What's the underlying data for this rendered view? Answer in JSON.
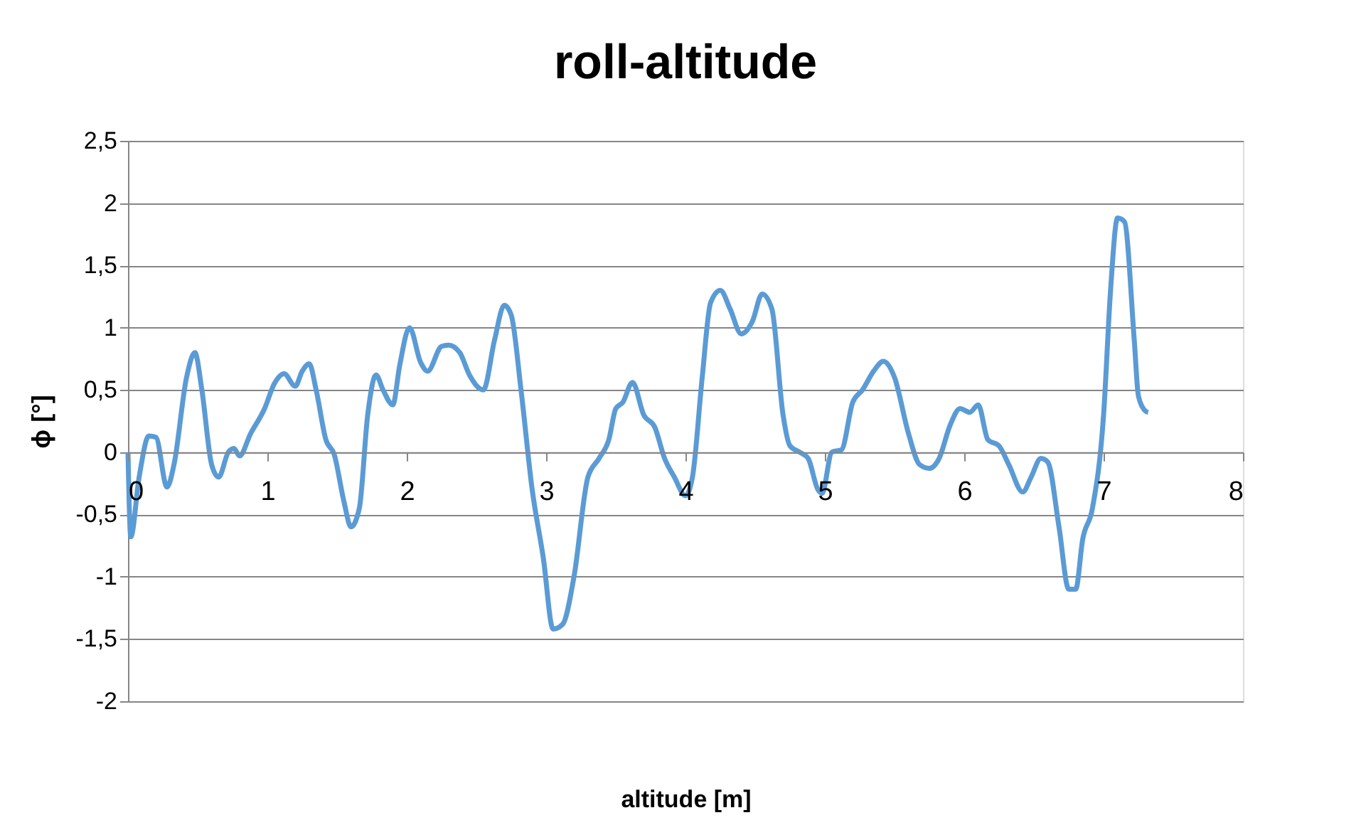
{
  "chart_data": {
    "type": "line",
    "title": "roll-altitude",
    "xlabel": "altitude [m]",
    "ylabel": "ϕ [°]",
    "xlim": [
      0,
      8
    ],
    "xticks": [
      0,
      1,
      2,
      3,
      4,
      5,
      6,
      7,
      8
    ],
    "ylim": [
      -2,
      2.5
    ],
    "yticks": [
      -2,
      {
        "value": -1.5,
        "label": "-1,5"
      },
      -1,
      {
        "value": -0.5,
        "label": "-0,5"
      },
      0,
      {
        "value": 0.5,
        "label": "0,5"
      },
      1,
      {
        "value": 1.5,
        "label": "1,5"
      },
      2,
      {
        "value": 2.5,
        "label": "2,5"
      }
    ],
    "grid": "y",
    "marker": "none",
    "line_style": "solid",
    "series": [
      {
        "color": "#5b9bd5",
        "x": [
          0,
          0.02,
          0.08,
          0.15,
          0.2,
          0.28,
          0.33,
          0.42,
          0.48,
          0.53,
          0.6,
          0.65,
          0.72,
          0.76,
          0.8,
          0.88,
          0.98,
          1.05,
          1.12,
          1.2,
          1.25,
          1.3,
          1.35,
          1.42,
          1.48,
          1.55,
          1.6,
          1.66,
          1.72,
          1.78,
          1.83,
          1.9,
          1.95,
          2.02,
          2.1,
          2.15,
          2.25,
          2.3,
          2.38,
          2.45,
          2.55,
          2.63,
          2.7,
          2.75,
          2.82,
          2.9,
          2.98,
          3.05,
          3.12,
          3.2,
          3.3,
          3.38,
          3.45,
          3.5,
          3.55,
          3.62,
          3.7,
          3.78,
          3.85,
          3.92,
          4.0,
          4.05,
          4.12,
          4.18,
          4.25,
          4.32,
          4.4,
          4.48,
          4.55,
          4.62,
          4.7,
          4.75,
          4.82,
          4.88,
          4.95,
          4.98,
          5.05,
          5.12,
          5.2,
          5.27,
          5.35,
          5.42,
          5.5,
          5.6,
          5.68,
          5.75,
          5.82,
          5.9,
          5.97,
          6.04,
          6.1,
          6.17,
          6.25,
          6.32,
          6.42,
          6.48,
          6.55,
          6.6,
          6.68,
          6.75,
          6.8,
          6.85,
          6.92,
          7.0,
          7.05,
          7.1,
          7.15,
          7.22,
          7.25,
          7.3,
          7.32
        ],
        "values": [
          0,
          -0.68,
          -0.2,
          0.13,
          0.12,
          -0.28,
          -0.1,
          0.6,
          0.8,
          0.5,
          -0.1,
          -0.2,
          0.0,
          0.03,
          -0.03,
          0.15,
          0.35,
          0.55,
          0.63,
          0.53,
          0.65,
          0.71,
          0.5,
          0.1,
          -0.02,
          -0.4,
          -0.6,
          -0.45,
          0.3,
          0.62,
          0.5,
          0.38,
          0.7,
          1.0,
          0.72,
          0.65,
          0.85,
          0.86,
          0.8,
          0.62,
          0.5,
          0.9,
          1.18,
          1.1,
          0.5,
          -0.3,
          -0.85,
          -1.42,
          -1.38,
          -1.0,
          -0.2,
          -0.05,
          0.1,
          0.35,
          0.4,
          0.56,
          0.3,
          0.2,
          -0.05,
          -0.2,
          -0.35,
          -0.2,
          0.6,
          1.2,
          1.3,
          1.15,
          0.95,
          1.05,
          1.27,
          1.15,
          0.3,
          0.05,
          0.0,
          -0.05,
          -0.3,
          -0.33,
          0.0,
          0.02,
          0.4,
          0.5,
          0.65,
          0.73,
          0.6,
          0.15,
          -0.1,
          -0.13,
          -0.05,
          0.22,
          0.35,
          0.32,
          0.38,
          0.1,
          0.05,
          -0.1,
          -0.32,
          -0.2,
          -0.05,
          -0.08,
          -0.6,
          -1.1,
          -1.1,
          -0.7,
          -0.45,
          0.3,
          1.3,
          1.88,
          1.85,
          0.9,
          0.45,
          0.33,
          0.32
        ]
      }
    ]
  }
}
